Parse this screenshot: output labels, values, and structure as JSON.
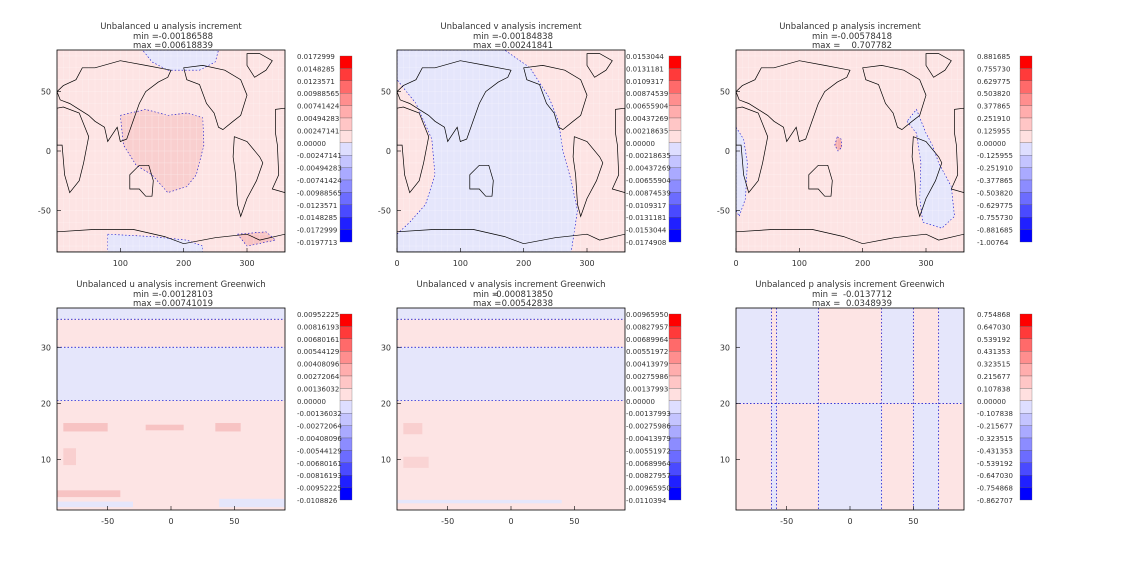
{
  "colors": {
    "positive_max": "#ff0000",
    "negative_max": "#0000ff",
    "near_zero_positive": "#ffe6e6",
    "near_zero_negative": "#e6e6ff",
    "contour_negative": "#0000cc",
    "coastline": "#000000"
  },
  "chart_data": [
    {
      "type": "heatmap",
      "title": "Unbalanced u analysis increment",
      "min_label": "min =",
      "min_value": "-0.00186588",
      "max_label": "max =",
      "max_value": "0.00618839",
      "background": "map",
      "x_ticks": [
        "100",
        "200",
        "300"
      ],
      "y_ticks": [
        "50",
        "0",
        "-50"
      ],
      "colorbar": [
        "0.0172999",
        "0.0148285",
        "0.0123571",
        "0.00988565",
        "0.00741424",
        "0.00494283",
        "0.00247141",
        "0.00000",
        "-0.00247141",
        "-0.00494283",
        "-0.00741424",
        "-0.00988565",
        "-0.0123571",
        "-0.0148285",
        "-0.0172999",
        "-0.0197713"
      ]
    },
    {
      "type": "heatmap",
      "title": "Unbalanced v analysis increment",
      "min_label": "min =",
      "min_value": "-0.00184838",
      "max_label": "max =",
      "max_value": "0.00241841",
      "background": "map",
      "x_ticks": [
        "0",
        "100",
        "200",
        "300"
      ],
      "y_ticks": [
        "50",
        "0",
        "-50"
      ],
      "colorbar": [
        "0.0153044",
        "0.0131181",
        "0.0109317",
        "0.00874539",
        "0.00655904",
        "0.00437269",
        "0.00218635",
        "0.00000",
        "-0.00218635",
        "-0.00437269",
        "-0.00655904",
        "-0.00874539",
        "-0.0109317",
        "-0.0131181",
        "-0.0153044",
        "-0.0174908"
      ]
    },
    {
      "type": "heatmap",
      "title": "Unbalanced p analysis increment",
      "min_label": "min =",
      "min_value": "-0.00578418",
      "max_label": "max =",
      "max_value": "0.707782",
      "background": "map",
      "x_ticks": [
        "0",
        "100",
        "200",
        "300"
      ],
      "y_ticks": [
        "50",
        "0",
        "-50"
      ],
      "colorbar": [
        "0.881685",
        "0.755730",
        "0.629775",
        "0.503820",
        "0.377865",
        "0.251910",
        "0.125955",
        "0.00000",
        "-0.125955",
        "-0.251910",
        "-0.377865",
        "-0.503820",
        "-0.629775",
        "-0.755730",
        "-0.881685",
        "-1.00764"
      ]
    },
    {
      "type": "heatmap",
      "title": "Unbalanced u analysis increment Greenwich",
      "min_label": "min =",
      "min_value": "-0.00128103",
      "max_label": "max =",
      "max_value": "0.00741019",
      "background": "section",
      "x_ticks": [
        "-50",
        "0",
        "50"
      ],
      "y_ticks": [
        "30",
        "20",
        "10"
      ],
      "colorbar": [
        "0.00952225",
        "0.00816193",
        "0.00680161",
        "0.00544129",
        "0.00408096",
        "0.00272064",
        "0.00136032",
        "0.00000",
        "-0.00136032",
        "-0.00272064",
        "-0.00408096",
        "-0.00544129",
        "-0.00680161",
        "-0.00816193",
        "-0.00952225",
        "-0.0108826"
      ]
    },
    {
      "type": "heatmap",
      "title": "Unbalanced v analysis increment Greenwich",
      "min_label": "min =",
      "min_value": "-0.000813850",
      "max_label": "max =",
      "max_value": "0.00542838",
      "background": "section",
      "x_ticks": [
        "-50",
        "0",
        "50"
      ],
      "y_ticks": [
        "30",
        "20",
        "10"
      ],
      "colorbar": [
        "0.00965950",
        "0.00827957",
        "0.00689964",
        "0.00551972",
        "0.00413979",
        "0.00275986",
        "0.00137993",
        "0.00000",
        "-0.00137993",
        "-0.00275986",
        "-0.00413979",
        "-0.00551972",
        "-0.00689964",
        "-0.00827957",
        "-0.00965950",
        "-0.0110394"
      ]
    },
    {
      "type": "heatmap",
      "title": "Unbalanced p analysis increment Greenwich",
      "min_label": "min =",
      "min_value": "-0.0137712",
      "max_label": "max =",
      "max_value": "0.0348939",
      "background": "section",
      "x_ticks": [
        "-50",
        "0",
        "50"
      ],
      "y_ticks": [
        "30",
        "20",
        "10"
      ],
      "colorbar": [
        "0.754868",
        "0.647030",
        "0.539192",
        "0.431353",
        "0.323515",
        "0.215677",
        "0.107838",
        "0.00000",
        "-0.107838",
        "-0.215677",
        "-0.323515",
        "-0.431353",
        "-0.539192",
        "-0.647030",
        "-0.754868",
        "-0.862707"
      ]
    }
  ]
}
